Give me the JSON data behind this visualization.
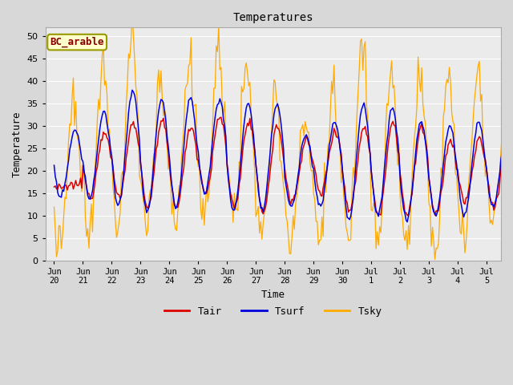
{
  "title": "Temperatures",
  "xlabel": "Time",
  "ylabel": "Temperature",
  "ylim": [
    0,
    52
  ],
  "background_color": "#d8d8d8",
  "plot_bg_color": "#ebebeb",
  "grid_color": "#ffffff",
  "legend_label": "BC_arable",
  "legend_bg": "#ffffcc",
  "legend_edge": "#999900",
  "legend_text_color": "#880000",
  "line_tair": "#dd0000",
  "line_tsurf": "#0000dd",
  "line_tsky": "#ffaa00",
  "tick_labels": [
    "Jun 20",
    "Jun 21",
    "Jun 22",
    "Jun 23",
    "Jun 24",
    "Jun 25",
    "Jun 26",
    "Jun 27",
    "Jun 28",
    "Jun 29",
    "Jun 30",
    "Jul 1",
    "Jul 2",
    "Jul 3",
    "Jul 4",
    "Jul 5"
  ],
  "tick_positions": [
    0,
    1,
    2,
    3,
    4,
    5,
    6,
    7,
    8,
    9,
    10,
    11,
    12,
    13,
    14,
    15
  ],
  "yticks": [
    0,
    5,
    10,
    15,
    20,
    25,
    30,
    35,
    40,
    45,
    50
  ],
  "n_per_day": 24,
  "n_days": 16,
  "tair_min": [
    16,
    14,
    14,
    12,
    12,
    15,
    12,
    11,
    13,
    15,
    11,
    10,
    10,
    10,
    13,
    12
  ],
  "tair_max": [
    17,
    29,
    31,
    31,
    30,
    32,
    31,
    30,
    27,
    29,
    30,
    31,
    30,
    27,
    27,
    28
  ],
  "tsurf_min": [
    14,
    14,
    12,
    11,
    12,
    15,
    11,
    11,
    12,
    12,
    9,
    10,
    9,
    10,
    10,
    12
  ],
  "tsurf_max": [
    29,
    33,
    38,
    36,
    36,
    36,
    35,
    35,
    28,
    31,
    35,
    34,
    31,
    30,
    31,
    30
  ],
  "tsky_min": [
    3,
    7,
    7,
    8,
    8,
    9,
    9,
    6,
    5,
    5,
    5,
    5,
    5,
    3,
    4,
    9
  ],
  "tsky_max": [
    33,
    40,
    46,
    38,
    41,
    42,
    40,
    33,
    30,
    35,
    43,
    39,
    37,
    37,
    37,
    35
  ],
  "tsky_noise": 2.5,
  "tair_noise": 0.5,
  "tsurf_noise": 0.3
}
